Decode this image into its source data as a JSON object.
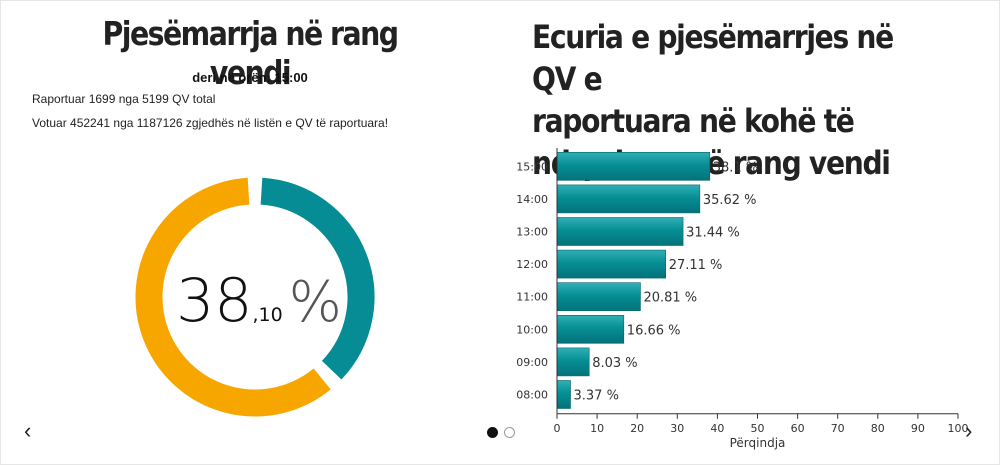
{
  "left_panel": {
    "title": "Pjesëmarrja në rang vendi",
    "subtitle": "deri në orën: 15:00",
    "info_reported": "Raportuar 1699 nga 5199 QV total",
    "info_voted": "Votuar 452241 nga 1187126 zgjedhës në listën e QV të raportuara!",
    "donut_value_int": "38",
    "donut_value_dec": ",10",
    "donut_unit": "%"
  },
  "right_panel": {
    "title_lines": [
      "Ecuria e pjesëmarrjes në QV e",
      "raportuara në kohë të",
      "ndryshme në rang vendi"
    ]
  },
  "colors": {
    "teal": "#058c94",
    "orange": "#f7a600"
  },
  "nav": {
    "prev_icon": "‹",
    "next_icon": "›"
  },
  "chart_data": [
    {
      "type": "pie",
      "values": [
        38.1,
        61.9
      ],
      "colors": [
        "#058c94",
        "#f7a600"
      ]
    },
    {
      "type": "bar",
      "orientation": "horizontal",
      "categories": [
        "15:00",
        "14:00",
        "13:00",
        "12:00",
        "11:00",
        "10:00",
        "09:00",
        "08:00"
      ],
      "values": [
        38.1,
        35.62,
        31.44,
        27.11,
        20.81,
        16.66,
        8.03,
        3.37
      ],
      "value_suffix": " %",
      "xlabel": "Përqindja",
      "xlim": [
        0,
        100
      ],
      "xticks": [
        0,
        10,
        20,
        30,
        40,
        50,
        60,
        70,
        80,
        90,
        100
      ],
      "grid": false
    }
  ]
}
